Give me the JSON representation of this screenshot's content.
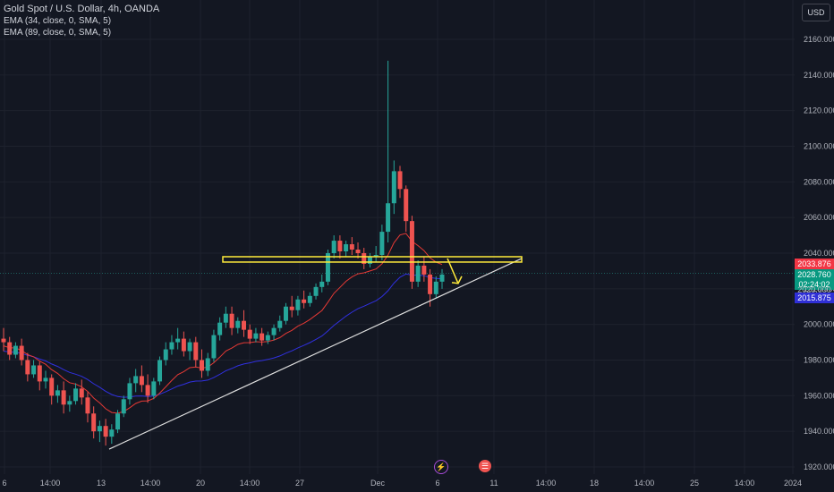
{
  "legend": {
    "title": "Gold Spot / U.S. Dollar, 4h, OANDA",
    "ema1": "EMA (34, close, 0, SMA, 5)",
    "ema2": "EMA (89, close, 0, SMA, 5)"
  },
  "currency": "USD",
  "price_labels": {
    "last": "2033.876",
    "current": "2028.760",
    "countdown": "02:24:02",
    "partial": "2020.000",
    "ema89": "2015.875"
  },
  "colors": {
    "background": "#131722",
    "up": "#26a69a",
    "down": "#ef5350",
    "ema34": "#e53935",
    "ema89": "#3030e0",
    "annotation": "#ffeb3b",
    "trendline": "#e0e0e0"
  },
  "events": {
    "flash_icon": "lightning-icon",
    "us_flag_icon": "us-flag-icon"
  },
  "chart_data": {
    "type": "candlestick",
    "ylim": [
      1915,
      2170
    ],
    "y_ticks": [
      1920,
      1940,
      1960,
      1980,
      2000,
      2020,
      2040,
      2060,
      2080,
      2100,
      2120,
      2140,
      2160
    ],
    "x_tick_labels": [
      "6",
      "14:00",
      "13",
      "14:00",
      "20",
      "14:00",
      "27",
      "Dec",
      "6",
      "11",
      "14:00",
      "18",
      "14:00",
      "25",
      "14:00",
      "2024"
    ],
    "annotations": {
      "resistance_zone": [
        2035,
        2038
      ],
      "trendline": [
        {
          "x": "13",
          "y": 1930
        },
        {
          "x": "11",
          "y": 2037
        }
      ],
      "arrow": "down from 2037 to 2023"
    },
    "series": [
      {
        "name": "EMA (34, close, 0, SMA, 5)",
        "key": "ema34"
      },
      {
        "name": "EMA (89, close, 0, SMA, 5)",
        "key": "ema89"
      }
    ],
    "candles": [
      {
        "o": 1992,
        "h": 1998,
        "c": 1990,
        "l": 1985
      },
      {
        "o": 1990,
        "h": 1993,
        "c": 1983,
        "l": 1980
      },
      {
        "o": 1983,
        "h": 1990,
        "c": 1988,
        "l": 1981
      },
      {
        "o": 1988,
        "h": 1992,
        "c": 1980,
        "l": 1977
      },
      {
        "o": 1980,
        "h": 1984,
        "c": 1972,
        "l": 1968
      },
      {
        "o": 1972,
        "h": 1980,
        "c": 1977,
        "l": 1970
      },
      {
        "o": 1977,
        "h": 1979,
        "c": 1968,
        "l": 1963
      },
      {
        "o": 1968,
        "h": 1974,
        "c": 1970,
        "l": 1964
      },
      {
        "o": 1970,
        "h": 1972,
        "c": 1960,
        "l": 1955
      },
      {
        "o": 1960,
        "h": 1966,
        "c": 1963,
        "l": 1956
      },
      {
        "o": 1963,
        "h": 1968,
        "c": 1955,
        "l": 1950
      },
      {
        "o": 1955,
        "h": 1960,
        "c": 1957,
        "l": 1951
      },
      {
        "o": 1957,
        "h": 1967,
        "c": 1964,
        "l": 1955
      },
      {
        "o": 1964,
        "h": 1969,
        "c": 1959,
        "l": 1955
      },
      {
        "o": 1959,
        "h": 1962,
        "c": 1950,
        "l": 1945
      },
      {
        "o": 1950,
        "h": 1954,
        "c": 1940,
        "l": 1936
      },
      {
        "o": 1940,
        "h": 1946,
        "c": 1943,
        "l": 1934
      },
      {
        "o": 1943,
        "h": 1947,
        "c": 1937,
        "l": 1932
      },
      {
        "o": 1937,
        "h": 1944,
        "c": 1941,
        "l": 1933
      },
      {
        "o": 1941,
        "h": 1952,
        "c": 1950,
        "l": 1939
      },
      {
        "o": 1950,
        "h": 1960,
        "c": 1958,
        "l": 1948
      },
      {
        "o": 1958,
        "h": 1970,
        "c": 1967,
        "l": 1955
      },
      {
        "o": 1967,
        "h": 1975,
        "c": 1971,
        "l": 1962
      },
      {
        "o": 1971,
        "h": 1977,
        "c": 1966,
        "l": 1962
      },
      {
        "o": 1966,
        "h": 1972,
        "c": 1960,
        "l": 1956
      },
      {
        "o": 1960,
        "h": 1970,
        "c": 1968,
        "l": 1958
      },
      {
        "o": 1968,
        "h": 1982,
        "c": 1980,
        "l": 1966
      },
      {
        "o": 1980,
        "h": 1990,
        "c": 1986,
        "l": 1977
      },
      {
        "o": 1986,
        "h": 1994,
        "c": 1990,
        "l": 1983
      },
      {
        "o": 1990,
        "h": 1998,
        "c": 1992,
        "l": 1986
      },
      {
        "o": 1992,
        "h": 1996,
        "c": 1985,
        "l": 1982
      },
      {
        "o": 1985,
        "h": 1992,
        "c": 1990,
        "l": 1980
      },
      {
        "o": 1990,
        "h": 1993,
        "c": 1980,
        "l": 1976
      },
      {
        "o": 1980,
        "h": 1986,
        "c": 1974,
        "l": 1970
      },
      {
        "o": 1974,
        "h": 1984,
        "c": 1981,
        "l": 1971
      },
      {
        "o": 1981,
        "h": 1997,
        "c": 1994,
        "l": 1979
      },
      {
        "o": 1994,
        "h": 2004,
        "c": 2001,
        "l": 1991
      },
      {
        "o": 2001,
        "h": 2010,
        "c": 2006,
        "l": 1998
      },
      {
        "o": 2006,
        "h": 2010,
        "c": 1998,
        "l": 1994
      },
      {
        "o": 1998,
        "h": 2004,
        "c": 2002,
        "l": 1995
      },
      {
        "o": 2002,
        "h": 2008,
        "c": 1997,
        "l": 1993
      },
      {
        "o": 1997,
        "h": 2000,
        "c": 1992,
        "l": 1989
      },
      {
        "o": 1992,
        "h": 1998,
        "c": 1995,
        "l": 1990
      },
      {
        "o": 1995,
        "h": 1998,
        "c": 1991,
        "l": 1988
      },
      {
        "o": 1991,
        "h": 1996,
        "c": 1994,
        "l": 1989
      },
      {
        "o": 1994,
        "h": 2000,
        "c": 1998,
        "l": 1991
      },
      {
        "o": 1998,
        "h": 2005,
        "c": 2002,
        "l": 1996
      },
      {
        "o": 2002,
        "h": 2012,
        "c": 2010,
        "l": 2000
      },
      {
        "o": 2010,
        "h": 2016,
        "c": 2008,
        "l": 2004
      },
      {
        "o": 2008,
        "h": 2016,
        "c": 2014,
        "l": 2005
      },
      {
        "o": 2014,
        "h": 2019,
        "c": 2012,
        "l": 2009
      },
      {
        "o": 2012,
        "h": 2018,
        "c": 2016,
        "l": 2010
      },
      {
        "o": 2016,
        "h": 2023,
        "c": 2021,
        "l": 2014
      },
      {
        "o": 2021,
        "h": 2028,
        "c": 2024,
        "l": 2018
      },
      {
        "o": 2024,
        "h": 2042,
        "c": 2040,
        "l": 2022
      },
      {
        "o": 2040,
        "h": 2050,
        "c": 2047,
        "l": 2037
      },
      {
        "o": 2047,
        "h": 2050,
        "c": 2041,
        "l": 2037
      },
      {
        "o": 2041,
        "h": 2047,
        "c": 2045,
        "l": 2038
      },
      {
        "o": 2045,
        "h": 2049,
        "c": 2042,
        "l": 2039
      },
      {
        "o": 2042,
        "h": 2046,
        "c": 2040,
        "l": 2037
      },
      {
        "o": 2040,
        "h": 2043,
        "c": 2034,
        "l": 2031
      },
      {
        "o": 2034,
        "h": 2040,
        "c": 2038,
        "l": 2032
      },
      {
        "o": 2038,
        "h": 2044,
        "c": 2039,
        "l": 2035
      },
      {
        "o": 2039,
        "h": 2056,
        "c": 2052,
        "l": 2036
      },
      {
        "o": 2052,
        "h": 2148,
        "c": 2068,
        "l": 2046
      },
      {
        "o": 2068,
        "h": 2092,
        "c": 2086,
        "l": 2062
      },
      {
        "o": 2086,
        "h": 2089,
        "c": 2076,
        "l": 2071
      },
      {
        "o": 2076,
        "h": 2078,
        "c": 2058,
        "l": 2052
      },
      {
        "o": 2058,
        "h": 2061,
        "c": 2024,
        "l": 2020
      },
      {
        "o": 2024,
        "h": 2036,
        "c": 2033,
        "l": 2021
      },
      {
        "o": 2033,
        "h": 2038,
        "c": 2028,
        "l": 2024
      },
      {
        "o": 2028,
        "h": 2031,
        "c": 2017,
        "l": 2010
      },
      {
        "o": 2017,
        "h": 2027,
        "c": 2024,
        "l": 2015
      },
      {
        "o": 2024,
        "h": 2031,
        "c": 2028,
        "l": 2020
      }
    ]
  }
}
